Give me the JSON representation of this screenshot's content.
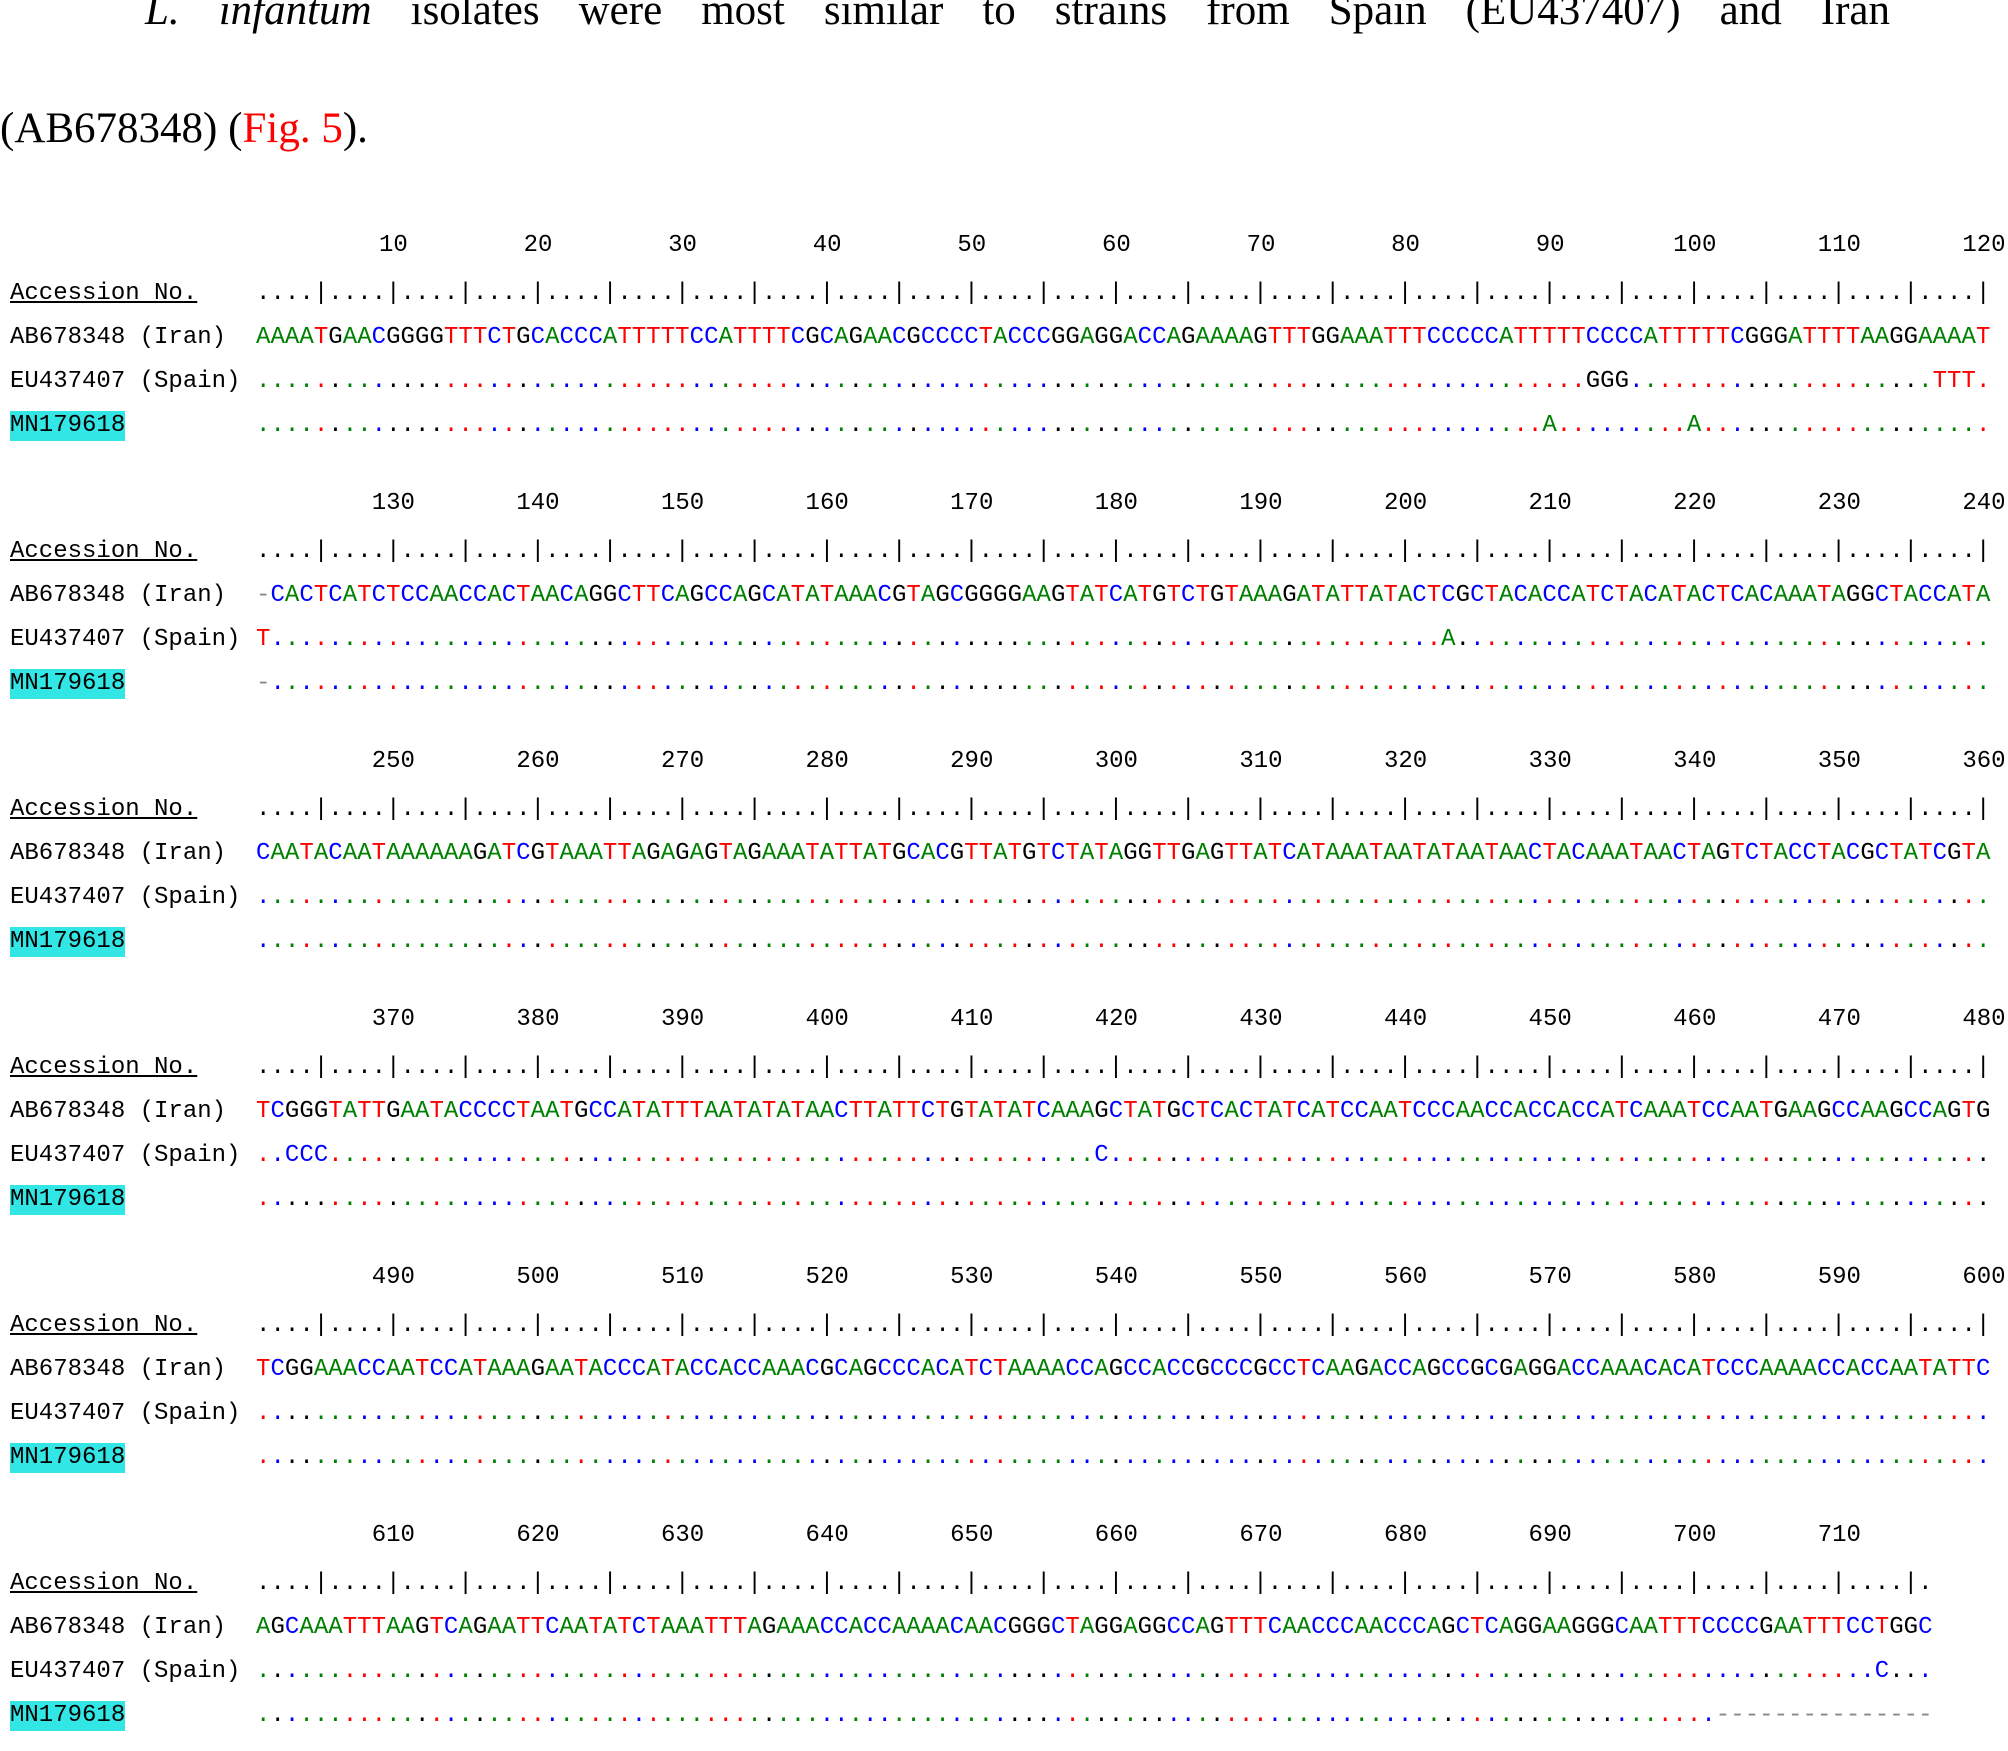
{
  "paragraph": {
    "species": "L. infantum",
    "text": " isolates were most similar to strains from Spain (EU437407) and Iran",
    "text2": "(AB678348) (",
    "link": "Fig. 5",
    "end": ")."
  },
  "alignment": {
    "header": "Accession No.",
    "blocks": [
      {
        "positions": [
          10,
          20,
          30,
          40,
          50,
          60,
          70,
          80,
          90,
          100,
          110,
          120
        ],
        "ruler": "....|....|....|....|....|....|....|....|....|....|....|....|....|....|....|....|....|....|....|....|....|....|....|....|",
        "rows": [
          {
            "name": "AB678348 (Iran)",
            "sequence": "AAAATGAACGGGGTTTCTGCACCCATTTTTCCATTTTCGCAGAACGCCCCTACCCGGAGGACCAGAAAAGTTTGGAAATTTCCCCCATTTTTCCCCATTTTTCGGGATTTTAAGGAAAAT"
          },
          {
            "name": "EU437407 (Spain)",
            "sequence": "............................................................................................GGG.....................TTT."
          },
          {
            "name": "MN179618",
            "sequence": ".........................................................................................A.........A...................."
          }
        ]
      },
      {
        "positions": [
          130,
          140,
          150,
          160,
          170,
          180,
          190,
          200,
          210,
          220,
          230,
          240
        ],
        "ruler": "....|....|....|....|....|....|....|....|....|....|....|....|....|....|....|....|....|....|....|....|....|....|....|....|",
        "rows": [
          {
            "name": "AB678348 (Iran)",
            "sequence": "-CACTCATCTCCAACCACTAACAGGCTTCAGCCAGCATATAAACGTAGCGGGGAAGTATCATGTCTGTAAAGATATTATACTCGCTACACCATCTACATACTCACAAATAGGCTACCATA"
          },
          {
            "name": "EU437407 (Spain)",
            "sequence": "T.................................................................................A....................................."
          },
          {
            "name": "MN179618",
            "sequence": "-......................................................................................................................."
          }
        ]
      },
      {
        "positions": [
          250,
          260,
          270,
          280,
          290,
          300,
          310,
          320,
          330,
          340,
          350,
          360
        ],
        "ruler": "....|....|....|....|....|....|....|....|....|....|....|....|....|....|....|....|....|....|....|....|....|....|....|....|",
        "rows": [
          {
            "name": "AB678348 (Iran)",
            "sequence": "CAATACAATAAAAAAGATCGTAAATTAGAGAGTAGAAATATTATGCACGTTATGTCTATAGGTTGAGTTATCATAAATAATATAATAACTACAAATAACTAGTCTACCTACGCTATCGTA"
          },
          {
            "name": "EU437407 (Spain)",
            "sequence": "........................................................................................................................"
          },
          {
            "name": "MN179618",
            "sequence": "........................................................................................................................"
          }
        ]
      },
      {
        "positions": [
          370,
          380,
          390,
          400,
          410,
          420,
          430,
          440,
          450,
          460,
          470,
          480
        ],
        "ruler": "....|....|....|....|....|....|....|....|....|....|....|....|....|....|....|....|....|....|....|....|....|....|....|....|",
        "rows": [
          {
            "name": "AB678348 (Iran)",
            "sequence": "TCGGGTATTGAATACCCCTAATGCCATATTTAATATATAACTTATTCTGTATATCAAAGCTATGCTCACTATCATCCAATCCCAACCACCACCATCAAATCCAATGAAGCCAAGCCAGTG"
          },
          {
            "name": "EU437407 (Spain)",
            "sequence": "..CCC.....................................................C............................................................."
          },
          {
            "name": "MN179618",
            "sequence": "........................................................................................................................"
          }
        ]
      },
      {
        "positions": [
          490,
          500,
          510,
          520,
          530,
          540,
          550,
          560,
          570,
          580,
          590,
          600
        ],
        "ruler": "....|....|....|....|....|....|....|....|....|....|....|....|....|....|....|....|....|....|....|....|....|....|....|....|",
        "rows": [
          {
            "name": "AB678348 (Iran)",
            "sequence": "TCGGAAACCAATCCATAAAGAATACCCATACCACCAAACGCAGCCCACATCTAAAACCAGCCACCGCCCGCCTCAAGACCAGCCGCGAGGACCAAACACATCCCAAAACCACCAATATTC"
          },
          {
            "name": "EU437407 (Spain)",
            "sequence": "........................................................................................................................"
          },
          {
            "name": "MN179618",
            "sequence": "........................................................................................................................"
          }
        ]
      },
      {
        "positions": [
          610,
          620,
          630,
          640,
          650,
          660,
          670,
          680,
          690,
          700,
          710
        ],
        "ruler": "....|....|....|....|....|....|....|....|....|....|....|....|....|....|....|....|....|....|....|....|....|....|....|.",
        "rows": [
          {
            "name": "AB678348 (Iran)",
            "sequence": "AGCAAATTTAAGTCAGAATTCAATATCTAAATTTAGAAACCACCAAAACAACGGGCTAGGAGGCCAGTTTCAACCCAACCCAGCTCAGGAAGGGCAATTTCCCCGAATTTCCTGGC"
          },
          {
            "name": "EU437407 (Spain)",
            "sequence": "................................................................................................................C..."
          },
          {
            "name": "MN179618",
            "sequence": ".....................................................................................................---------------"
          }
        ]
      }
    ]
  }
}
